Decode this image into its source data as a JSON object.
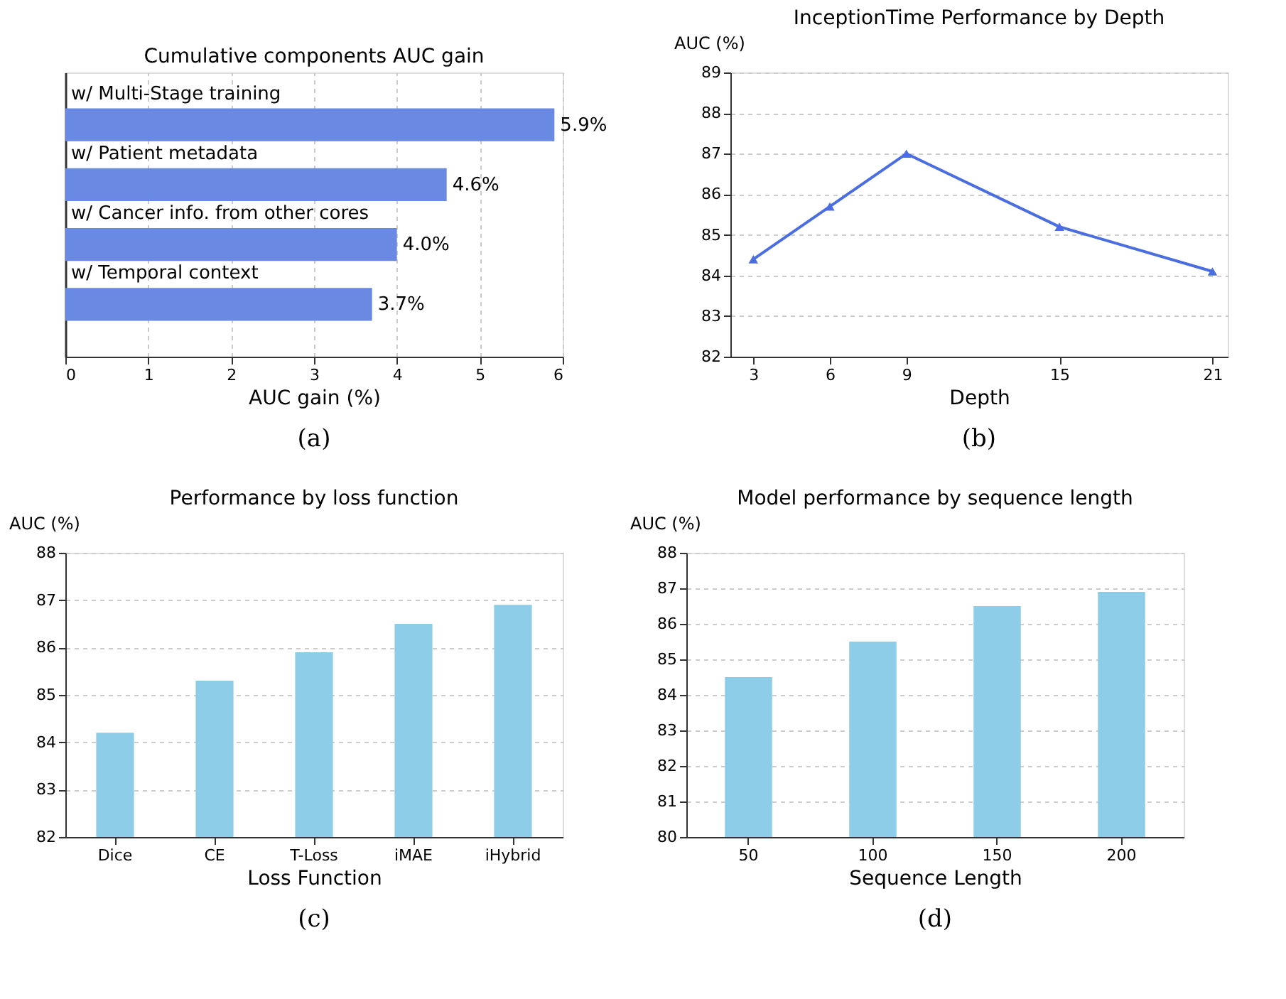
{
  "chart_data": [
    {
      "type": "bar",
      "orientation": "horizontal",
      "title": "Cumulative components AUC gain",
      "xlabel": "AUC gain (%)",
      "categories": [
        "w/ Multi-Stage training",
        "w/ Patient metadata",
        "w/ Cancer info. from other cores",
        "w/ Temporal context"
      ],
      "values": [
        5.9,
        4.6,
        4.0,
        3.7
      ],
      "value_labels": [
        "5.9%",
        "4.6%",
        "4.0%",
        "3.7%"
      ],
      "color": "#6a89e3",
      "xlim": [
        0,
        6
      ],
      "xticks": [
        0,
        1,
        2,
        3,
        4,
        5,
        6
      ],
      "grid": "x",
      "tick_labels": "x",
      "annotations": [
        "(a)"
      ]
    },
    {
      "type": "line",
      "title": "InceptionTime Performance by Depth",
      "xlabel": "Depth",
      "ylabel": "AUC (%)",
      "x": [
        3,
        6,
        9,
        15,
        21
      ],
      "values": [
        84.4,
        85.7,
        87.0,
        85.2,
        84.1
      ],
      "color": "#4a6ee0",
      "marker": "triangle",
      "line_style": "solid",
      "xlim": [
        2.1,
        21.6
      ],
      "xticks": [
        3,
        6,
        9,
        15,
        21
      ],
      "ylim": [
        82,
        89
      ],
      "yticks": [
        82,
        83,
        84,
        85,
        86,
        87,
        88,
        89
      ],
      "grid": "y",
      "annotations": [
        "(b)"
      ]
    },
    {
      "type": "bar",
      "title": "Performance by loss function",
      "xlabel": "Loss Function",
      "ylabel": "AUC (%)",
      "categories": [
        "Dice",
        "CE",
        "T-Loss",
        "iMAE",
        "iHybrid"
      ],
      "values": [
        84.2,
        85.3,
        85.9,
        86.5,
        86.9
      ],
      "color": "#8ecde8",
      "ylim": [
        82,
        88
      ],
      "yticks": [
        82,
        83,
        84,
        85,
        86,
        87,
        88
      ],
      "grid": "y",
      "annotations": [
        "(c)"
      ]
    },
    {
      "type": "bar",
      "title": "Model performance by sequence length",
      "xlabel": "Sequence Length",
      "ylabel": "AUC (%)",
      "categories": [
        "50",
        "100",
        "150",
        "200"
      ],
      "values": [
        84.5,
        85.5,
        86.5,
        86.9
      ],
      "color": "#8ecde8",
      "ylim": [
        80,
        88
      ],
      "yticks": [
        80,
        81,
        82,
        83,
        84,
        85,
        86,
        87,
        88
      ],
      "grid": "y",
      "annotations": [
        "(d)"
      ]
    }
  ]
}
